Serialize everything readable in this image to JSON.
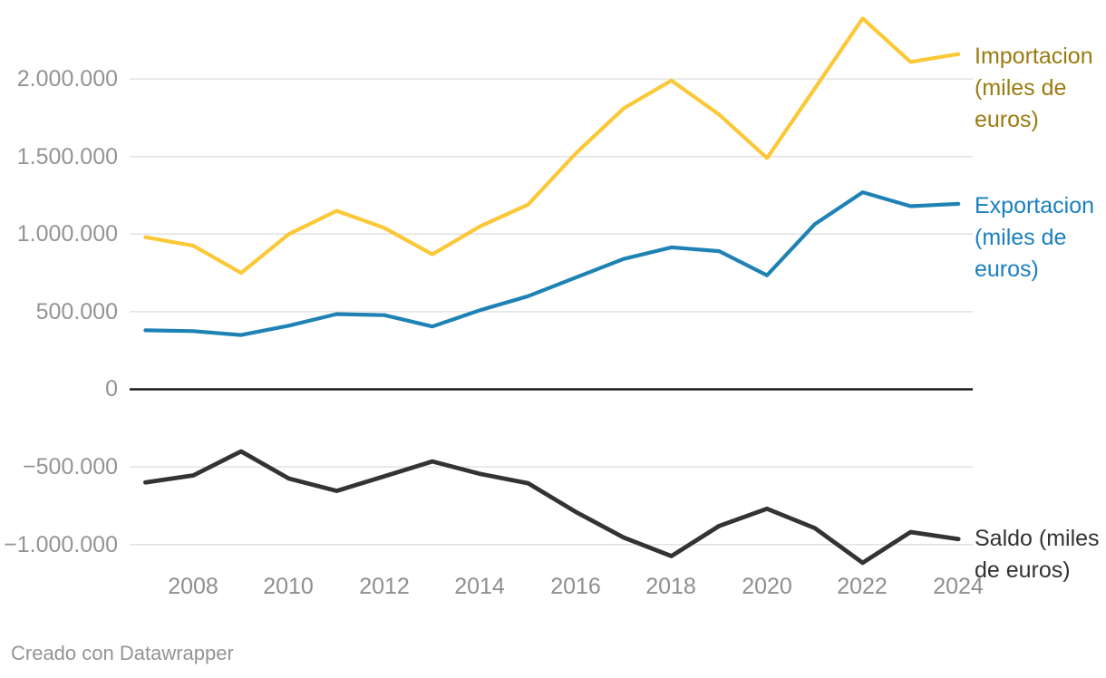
{
  "footer": {
    "credit": "Creado con Datawrapper"
  },
  "chart_data": {
    "type": "line",
    "title": "",
    "xlabel": "",
    "ylabel": "",
    "grid": true,
    "legend_position": "right-end-of-line",
    "gridline_color": "#e2e2e2",
    "zero_line_color": "#1a1a1a",
    "x_axis": {
      "years": [
        2007,
        2008,
        2009,
        2010,
        2011,
        2012,
        2013,
        2014,
        2015,
        2016,
        2017,
        2018,
        2019,
        2020,
        2021,
        2022,
        2023,
        2024
      ],
      "tick_labels": [
        "2008",
        "2010",
        "2012",
        "2014",
        "2016",
        "2018",
        "2020",
        "2022",
        "2024"
      ]
    },
    "y_axis": {
      "ticks": [
        {
          "value": 2000000,
          "label": "2.000.000"
        },
        {
          "value": 1500000,
          "label": "1.500.000"
        },
        {
          "value": 1000000,
          "label": "1.000.000"
        },
        {
          "value": 500000,
          "label": "500.000"
        },
        {
          "value": 0,
          "label": "0"
        },
        {
          "value": -500000,
          "label": "−500.000"
        },
        {
          "value": -1000000,
          "label": "−1.000.000"
        }
      ],
      "tick_labels": [
        "2.000.000",
        "1.500.000",
        "1.000.000",
        "500.000",
        "0",
        "−500.000",
        "−1.000.000"
      ],
      "ylim": [
        -1200000,
        2400000
      ]
    },
    "series": [
      {
        "id": "importacion",
        "name": "Importacion (miles de euros)",
        "label_lines": [
          "Importacion",
          "(miles de",
          "euros)"
        ],
        "color": "#fbc838",
        "label_color": "#9b7b0f",
        "values": [
          980000,
          925000,
          750000,
          1000000,
          1150000,
          1040000,
          870000,
          1050000,
          1190000,
          1520000,
          1810000,
          1990000,
          1770000,
          1490000,
          1940000,
          2390000,
          2110000,
          2160000
        ]
      },
      {
        "id": "exportacion",
        "name": "Exportacion (miles de euros)",
        "label_lines": [
          "Exportacion",
          "(miles de",
          "euros)"
        ],
        "color": "#1f82b4",
        "label_color": "#1a80c0",
        "values": [
          380000,
          375000,
          350000,
          410000,
          485000,
          478000,
          405000,
          510000,
          600000,
          720000,
          840000,
          915000,
          890000,
          735000,
          1065000,
          1270000,
          1180000,
          1195000
        ]
      },
      {
        "id": "saldo",
        "name": "Saldo (miles de euros)",
        "label_lines": [
          "Saldo (miles",
          "de euros)"
        ],
        "color": "#333333",
        "label_color": "#333333",
        "values": [
          -600000,
          -555000,
          -400000,
          -575000,
          -655000,
          -560000,
          -465000,
          -545000,
          -605000,
          -790000,
          -955000,
          -1075000,
          -880000,
          -770000,
          -895000,
          -1118000,
          -920000,
          -965000
        ]
      }
    ]
  }
}
